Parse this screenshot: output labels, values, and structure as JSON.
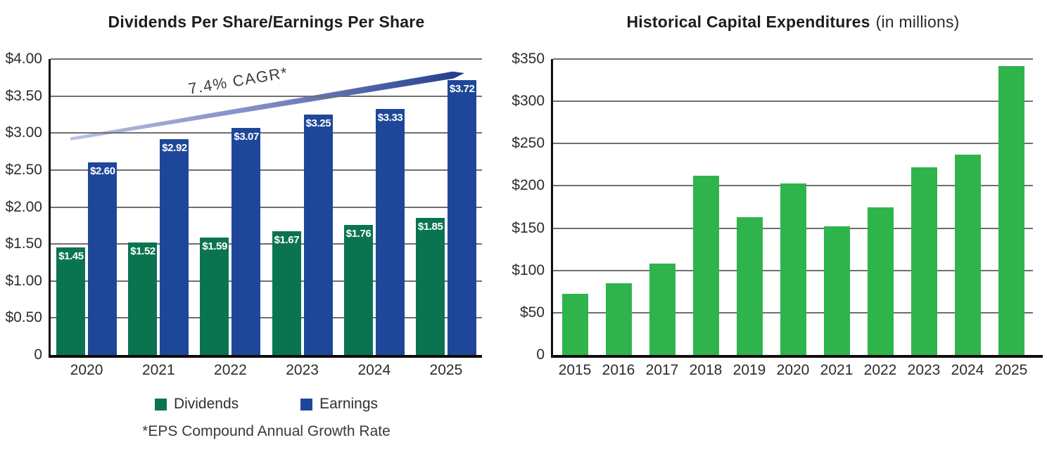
{
  "chart_data": [
    {
      "type": "bar",
      "title": "Dividends Per Share/Earnings Per Share",
      "categories": [
        "2020",
        "2021",
        "2022",
        "2023",
        "2024",
        "2025"
      ],
      "series": [
        {
          "name": "Dividends",
          "color": "#0A7451",
          "values": [
            1.45,
            1.52,
            1.59,
            1.67,
            1.76,
            1.85
          ],
          "bar_labels": [
            "$1.45",
            "$1.52",
            "$1.59",
            "$1.67",
            "$1.76",
            "$1.85"
          ]
        },
        {
          "name": "Earnings",
          "color": "#1F4799",
          "values": [
            2.6,
            2.92,
            3.07,
            3.25,
            3.33,
            3.72
          ],
          "bar_labels": [
            "$2.60",
            "$2.92",
            "$3.07",
            "$3.25",
            "$3.33",
            "$3.72"
          ]
        }
      ],
      "ylim": [
        0,
        4
      ],
      "y_ticks": [
        {
          "label": "$4.00",
          "value": 4
        },
        {
          "label": "$3.50",
          "value": 3.5
        },
        {
          "label": "$3.00",
          "value": 3
        },
        {
          "label": "$2.50",
          "value": 2.5
        },
        {
          "label": "$2.00",
          "value": 2
        },
        {
          "label": "$1.50",
          "value": 1.5
        },
        {
          "label": "$1.00",
          "value": 1
        },
        {
          "label": "$0.50",
          "value": 0.5
        },
        {
          "label": "0",
          "value": 0
        }
      ],
      "grid": true,
      "legend_position": "bottom",
      "annotation": {
        "text": "7.4% CAGR*",
        "start_value": 2.92,
        "end_value": 3.81,
        "color_start": "#BCC1E3",
        "color_mid": "#7E89C3",
        "color_end": "#1E3E8C"
      },
      "footnote": "*EPS Compound Annual Growth Rate"
    },
    {
      "type": "bar",
      "title_bold": "Historical Capital Expenditures",
      "title_light": "(in millions)",
      "categories": [
        "2015",
        "2016",
        "2017",
        "2018",
        "2019",
        "2020",
        "2021",
        "2022",
        "2023",
        "2024",
        "2025"
      ],
      "values": [
        72,
        85,
        108,
        212,
        163,
        203,
        152,
        175,
        222,
        237,
        342
      ],
      "bar_color": "#2FB44C",
      "ylim": [
        0,
        350
      ],
      "y_ticks": [
        {
          "label": "$350",
          "value": 350
        },
        {
          "label": "$300",
          "value": 300
        },
        {
          "label": "$250",
          "value": 250
        },
        {
          "label": "$200",
          "value": 200
        },
        {
          "label": "$150",
          "value": 150
        },
        {
          "label": "$100",
          "value": 100
        },
        {
          "label": "$50",
          "value": 50
        },
        {
          "label": "0",
          "value": 0
        }
      ],
      "grid": true
    }
  ]
}
